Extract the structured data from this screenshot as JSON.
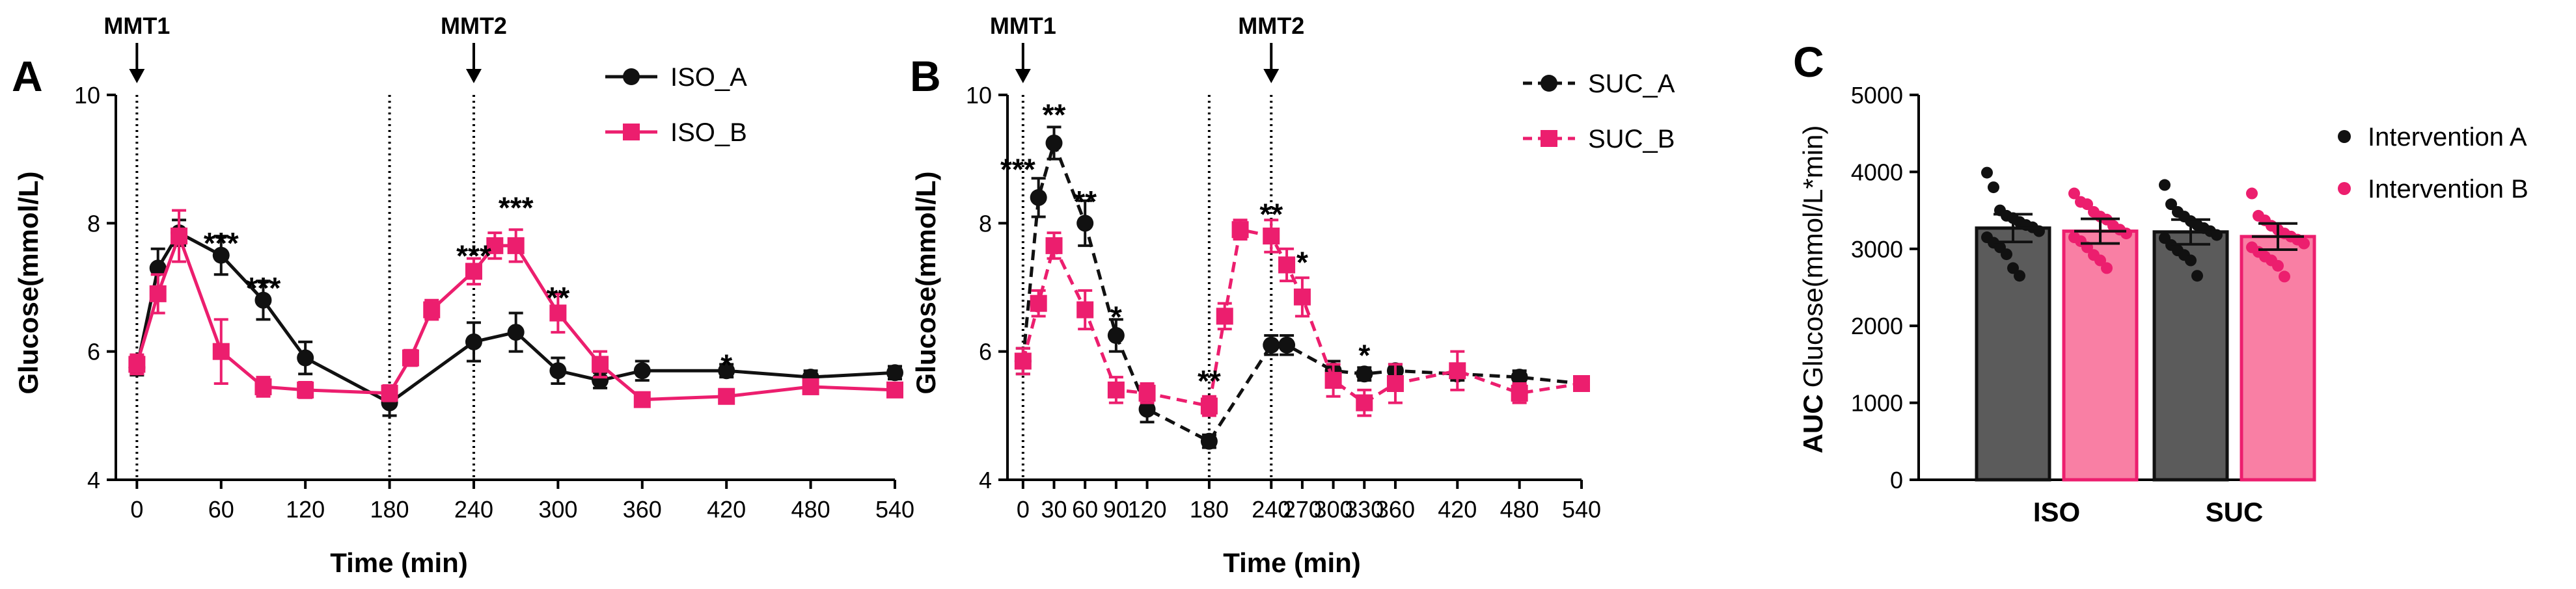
{
  "colors": {
    "black": "#111111",
    "pink": "#ec1e6e",
    "bar_a": "#5b5b5b",
    "bar_b": "#f97fa4"
  },
  "chart_data": [
    {
      "panel": "A",
      "type": "line",
      "xlabel": "Time (min)",
      "ylabel": "Glucose(mmol/L)",
      "xlim": [
        -15,
        540
      ],
      "ylim": [
        4,
        10
      ],
      "xticks": [
        "0",
        "60",
        "120",
        "180",
        "240",
        "300",
        "360",
        "420",
        "480",
        "540"
      ],
      "yticks": [
        "4",
        "6",
        "8",
        "10"
      ],
      "markers": [
        {
          "x": 0,
          "label": "MMT1"
        },
        {
          "x": 240,
          "label": "MMT2"
        }
      ],
      "extra_vlines": [
        180
      ],
      "x": [
        0,
        15,
        30,
        60,
        90,
        120,
        180,
        195,
        210,
        240,
        255,
        270,
        300,
        330,
        360,
        420,
        480,
        540
      ],
      "series": [
        {
          "name": "ISO_A",
          "style": "solid",
          "marker": "circle",
          "color": "black",
          "values": [
            5.75,
            7.3,
            7.85,
            7.5,
            6.8,
            5.9,
            5.2,
            null,
            null,
            6.15,
            null,
            6.3,
            5.7,
            5.55,
            5.7,
            5.7,
            5.6,
            5.67
          ],
          "errors": [
            0.12,
            0.3,
            0.2,
            0.3,
            0.3,
            0.25,
            0.2,
            null,
            null,
            0.3,
            null,
            0.3,
            0.2,
            0.12,
            0.15,
            0.1,
            0.1,
            0.1
          ]
        },
        {
          "name": "ISO_B",
          "style": "solid",
          "marker": "square",
          "color": "pink",
          "values": [
            5.8,
            6.9,
            7.8,
            6.0,
            5.45,
            5.4,
            5.35,
            5.9,
            6.65,
            7.25,
            7.65,
            7.65,
            6.6,
            5.8,
            5.25,
            5.3,
            5.45,
            5.4
          ],
          "errors": [
            0.15,
            0.3,
            0.4,
            0.5,
            0.15,
            0.12,
            0.12,
            0.12,
            0.15,
            0.2,
            0.2,
            0.25,
            0.3,
            0.2,
            0.1,
            0.1,
            0.1,
            0.1
          ]
        }
      ],
      "annotations": [
        {
          "x": 60,
          "y": 7.75,
          "text": "***"
        },
        {
          "x": 90,
          "y": 7.05,
          "text": "***"
        },
        {
          "x": 240,
          "y": 7.55,
          "text": "***"
        },
        {
          "x": 270,
          "y": 8.3,
          "text": "***"
        },
        {
          "x": 300,
          "y": 6.9,
          "text": "**"
        },
        {
          "x": 420,
          "y": 5.85,
          "text": "*"
        }
      ]
    },
    {
      "panel": "B",
      "type": "line",
      "xlabel": "Time (min)",
      "ylabel": "Glucose(mmol/L)",
      "xlim": [
        -15,
        540
      ],
      "ylim": [
        4,
        10
      ],
      "xticks": [
        "0",
        "30",
        "60",
        "90",
        "120",
        "180",
        "240",
        "270",
        "300",
        "330",
        "360",
        "420",
        "480",
        "540"
      ],
      "xtick_values": [
        0,
        30,
        60,
        90,
        120,
        180,
        240,
        270,
        300,
        330,
        360,
        420,
        480,
        540
      ],
      "yticks": [
        "4",
        "6",
        "8",
        "10"
      ],
      "markers": [
        {
          "x": 0,
          "label": "MMT1"
        },
        {
          "x": 240,
          "label": "MMT2"
        }
      ],
      "extra_vlines": [
        180
      ],
      "x": [
        0,
        15,
        30,
        45,
        60,
        75,
        90,
        120,
        180,
        195,
        210,
        240,
        255,
        270,
        300,
        330,
        360,
        420,
        480,
        540
      ],
      "series": [
        {
          "name": "SUC_A",
          "style": "dashed",
          "marker": "circle",
          "color": "black",
          "values": [
            5.85,
            8.4,
            9.25,
            null,
            8.0,
            null,
            6.25,
            5.1,
            4.6,
            null,
            null,
            6.1,
            6.1,
            null,
            5.7,
            5.65,
            5.7,
            5.65,
            5.6,
            5.5
          ],
          "errors": [
            0.2,
            0.3,
            0.25,
            null,
            0.35,
            null,
            0.25,
            0.2,
            0.1,
            null,
            null,
            0.15,
            0.15,
            null,
            0.15,
            0.1,
            0.1,
            0.1,
            0.1,
            0.1
          ]
        },
        {
          "name": "SUC_B",
          "style": "dashed",
          "marker": "square",
          "color": "pink",
          "values": [
            5.85,
            6.75,
            7.65,
            null,
            6.65,
            null,
            5.4,
            5.35,
            5.15,
            6.55,
            7.9,
            7.8,
            7.35,
            6.85,
            5.55,
            5.2,
            5.5,
            5.7,
            5.35,
            5.5
          ],
          "errors": [
            0.2,
            0.2,
            0.2,
            null,
            0.3,
            null,
            0.2,
            0.15,
            0.15,
            0.2,
            0.15,
            0.25,
            0.25,
            0.3,
            0.25,
            0.2,
            0.3,
            0.3,
            0.15,
            0.1
          ]
        }
      ],
      "annotations": [
        {
          "x": -5,
          "y": 8.9,
          "text": "***"
        },
        {
          "x": 30,
          "y": 9.75,
          "text": "**"
        },
        {
          "x": 60,
          "y": 8.4,
          "text": "**"
        },
        {
          "x": 90,
          "y": 6.6,
          "text": "*"
        },
        {
          "x": 180,
          "y": 5.6,
          "text": "**"
        },
        {
          "x": 240,
          "y": 8.2,
          "text": "**"
        },
        {
          "x": 270,
          "y": 7.45,
          "text": "*"
        },
        {
          "x": 330,
          "y": 6.0,
          "text": "*"
        }
      ]
    },
    {
      "panel": "C",
      "type": "bar",
      "ylabel_bold": "AUC",
      "ylabel": "Glucose(mmol/L*min)",
      "ylim": [
        0,
        5000
      ],
      "yticks": [
        "0",
        "1000",
        "2000",
        "3000",
        "4000",
        "5000"
      ],
      "categories": [
        "ISO",
        "SUC"
      ],
      "series": [
        {
          "name": "Intervention A",
          "color": "bar_a",
          "dot": "black",
          "values": [
            3270,
            3220
          ],
          "errors": [
            180,
            160
          ],
          "points": [
            [
              3990,
              3800,
              3500,
              3430,
              3400,
              3350,
              3310,
              3280,
              3230,
              3150,
              3080,
              3020,
              2930,
              2750,
              2650
            ],
            [
              3830,
              3580,
              3480,
              3420,
              3360,
              3310,
              3270,
              3230,
              3180,
              3140,
              3050,
              2980,
              2920,
              2850,
              2650
            ]
          ]
        },
        {
          "name": "Intervention B",
          "color": "bar_b",
          "dot": "pink",
          "values": [
            3230,
            3160
          ],
          "errors": [
            160,
            170
          ],
          "points": [
            [
              3720,
              3610,
              3580,
              3480,
              3420,
              3380,
              3300,
              3250,
              3200,
              3150,
              3100,
              3020,
              2920,
              2850,
              2750
            ],
            [
              3720,
              3430,
              3370,
              3300,
              3250,
              3200,
              3160,
              3120,
              3070,
              3020,
              2960,
              2900,
              2850,
              2780,
              2640
            ]
          ]
        }
      ]
    }
  ]
}
